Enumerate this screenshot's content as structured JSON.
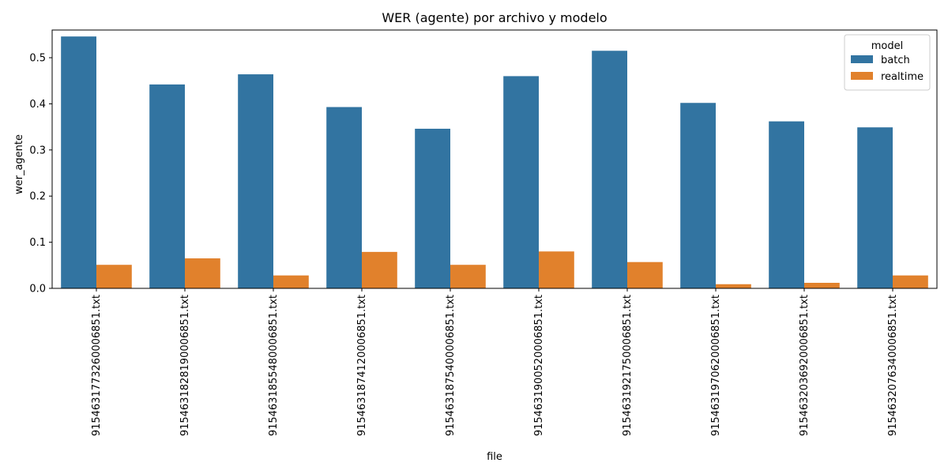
{
  "colors": {
    "batch": "#3274a1",
    "realtime": "#e1812c"
  },
  "chart_data": {
    "type": "bar",
    "title": "WER (agente) por archivo y modelo",
    "xlabel": "file",
    "ylabel": "wer_agente",
    "ylim": [
      0,
      0.56
    ],
    "yticks": [
      0.0,
      0.1,
      0.2,
      0.3,
      0.4,
      0.5
    ],
    "ytick_labels": [
      "0.0",
      "0.1",
      "0.2",
      "0.3",
      "0.4",
      "0.5"
    ],
    "grid": false,
    "legend_title": "model",
    "legend_position": "top-right",
    "categories": [
      "9154631773260006851.txt",
      "9154631828190006851.txt",
      "9154631855480006851.txt",
      "9154631874120006851.txt",
      "9154631875400006851.txt",
      "9154631900520006851.txt",
      "9154631921750006851.txt",
      "9154631970620006851.txt",
      "9154632036920006851.txt",
      "9154632076340006851.txt"
    ],
    "series": [
      {
        "name": "batch",
        "values": [
          0.546,
          0.442,
          0.464,
          0.393,
          0.346,
          0.46,
          0.515,
          0.402,
          0.362,
          0.349
        ]
      },
      {
        "name": "realtime",
        "values": [
          0.051,
          0.065,
          0.028,
          0.079,
          0.051,
          0.08,
          0.057,
          0.009,
          0.012,
          0.028
        ]
      }
    ]
  }
}
